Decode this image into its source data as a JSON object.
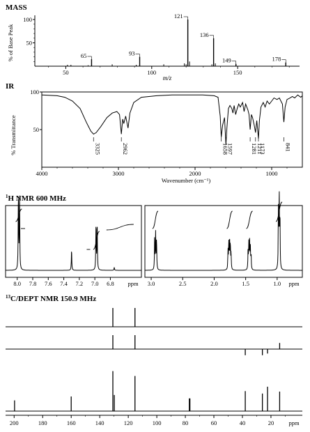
{
  "sections": {
    "mass": "MASS",
    "ir": "IR",
    "hnmr": "H NMR 600 MHz",
    "hnmr_sup": "1",
    "cnmr": "C/DEPT NMR 150.9 MHz",
    "cnmr_sup": "13"
  },
  "chart_data": [
    {
      "id": "mass",
      "type": "bar",
      "title": "MASS",
      "xlabel": "m/z",
      "ylabel": "% of Base Peak",
      "xlim": [
        32,
        186
      ],
      "ylim": [
        0,
        100
      ],
      "x_ticks": [
        "50",
        "100",
        "150"
      ],
      "x_tick_values": [
        50,
        100,
        150
      ],
      "y_ticks": [
        "100",
        "50"
      ],
      "y_tick_values": [
        100,
        50
      ],
      "peaks": [
        {
          "mz": 65,
          "rel": 15,
          "label": "65"
        },
        {
          "mz": 93,
          "rel": 20,
          "label": "93"
        },
        {
          "mz": 121,
          "rel": 100,
          "label": "121"
        },
        {
          "mz": 136,
          "rel": 60,
          "label": "136"
        },
        {
          "mz": 149,
          "rel": 5,
          "label": "149"
        },
        {
          "mz": 178,
          "rel": 8,
          "label": "178"
        }
      ],
      "minor_peaks": [
        [
          51,
          3
        ],
        [
          53,
          3
        ],
        [
          63,
          2
        ],
        [
          77,
          4
        ],
        [
          91,
          3
        ],
        [
          107,
          4
        ],
        [
          119,
          6
        ],
        [
          122,
          10
        ],
        [
          135,
          4
        ],
        [
          137,
          6
        ],
        [
          120,
          4
        ]
      ]
    },
    {
      "id": "ir",
      "type": "line",
      "title": "IR",
      "xlabel": "Wavenumber (cm⁻¹)",
      "ylabel": "% Transmittance",
      "xlim": [
        4000,
        600
      ],
      "ylim": [
        0,
        100
      ],
      "x_ticks": [
        "4000",
        "3000",
        "2000",
        "1000"
      ],
      "x_tick_values": [
        4000,
        3000,
        2000,
        1000
      ],
      "y_ticks": [
        "100",
        "50"
      ],
      "y_tick_values": [
        100,
        50
      ],
      "annotations": [
        {
          "wn": 3325,
          "label": "3325"
        },
        {
          "wn": 2962,
          "label": "2962"
        },
        {
          "wn": 1658,
          "label": "1658"
        },
        {
          "wn": 1597,
          "label": "1597"
        },
        {
          "wn": 1281,
          "label": "1281"
        },
        {
          "wn": 1211,
          "label": "1211"
        },
        {
          "wn": 1173,
          "label": "1173"
        },
        {
          "wn": 841,
          "label": "841"
        }
      ],
      "spectrum": [
        [
          4000,
          96
        ],
        [
          3800,
          95
        ],
        [
          3700,
          93
        ],
        [
          3600,
          88
        ],
        [
          3500,
          78
        ],
        [
          3420,
          60
        ],
        [
          3360,
          48
        ],
        [
          3325,
          44
        ],
        [
          3290,
          46
        ],
        [
          3230,
          54
        ],
        [
          3150,
          66
        ],
        [
          3080,
          72
        ],
        [
          3020,
          74
        ],
        [
          2985,
          70
        ],
        [
          2962,
          44
        ],
        [
          2945,
          64
        ],
        [
          2930,
          58
        ],
        [
          2905,
          68
        ],
        [
          2875,
          52
        ],
        [
          2850,
          72
        ],
        [
          2800,
          86
        ],
        [
          2700,
          93
        ],
        [
          2500,
          95
        ],
        [
          2300,
          96
        ],
        [
          2100,
          96
        ],
        [
          1900,
          96
        ],
        [
          1750,
          95
        ],
        [
          1700,
          93
        ],
        [
          1672,
          68
        ],
        [
          1658,
          40
        ],
        [
          1640,
          56
        ],
        [
          1615,
          66
        ],
        [
          1597,
          30
        ],
        [
          1585,
          52
        ],
        [
          1565,
          78
        ],
        [
          1545,
          82
        ],
        [
          1520,
          78
        ],
        [
          1505,
          72
        ],
        [
          1490,
          82
        ],
        [
          1470,
          70
        ],
        [
          1450,
          78
        ],
        [
          1430,
          84
        ],
        [
          1410,
          80
        ],
        [
          1380,
          86
        ],
        [
          1360,
          74
        ],
        [
          1340,
          84
        ],
        [
          1310,
          76
        ],
        [
          1295,
          70
        ],
        [
          1281,
          50
        ],
        [
          1265,
          70
        ],
        [
          1250,
          66
        ],
        [
          1228,
          56
        ],
        [
          1211,
          46
        ],
        [
          1195,
          62
        ],
        [
          1173,
          38
        ],
        [
          1160,
          62
        ],
        [
          1140,
          80
        ],
        [
          1110,
          86
        ],
        [
          1085,
          80
        ],
        [
          1060,
          88
        ],
        [
          1030,
          84
        ],
        [
          1000,
          88
        ],
        [
          970,
          92
        ],
        [
          930,
          90
        ],
        [
          900,
          92
        ],
        [
          860,
          84
        ],
        [
          841,
          60
        ],
        [
          825,
          80
        ],
        [
          800,
          90
        ],
        [
          760,
          92
        ],
        [
          730,
          94
        ],
        [
          700,
          92
        ],
        [
          660,
          96
        ],
        [
          620,
          93
        ],
        [
          600,
          95
        ]
      ]
    },
    {
      "id": "hnmr_left",
      "type": "line",
      "title": "H NMR 600 MHz",
      "xlabel": "ppm",
      "xlim": [
        8.15,
        6.4
      ],
      "x_ticks": [
        "8.0",
        "7.8",
        "7.6",
        "7.4",
        "7.2",
        "7.0",
        "6.8"
      ],
      "x_tick_values": [
        8.0,
        7.8,
        7.6,
        7.4,
        7.2,
        7.0,
        6.8
      ],
      "peaks": [
        {
          "ppm": 7.985,
          "h": 1.0
        },
        {
          "ppm": 7.97,
          "h": 1.0
        },
        {
          "ppm": 7.3,
          "h": 0.28
        },
        {
          "ppm": 6.985,
          "h": 0.62
        },
        {
          "ppm": 6.97,
          "h": 0.62
        },
        {
          "ppm": 6.75,
          "h": 0.04
        }
      ]
    },
    {
      "id": "hnmr_right",
      "type": "line",
      "xlabel": "ppm",
      "xlim": [
        3.1,
        0.6
      ],
      "x_ticks": [
        "3.0",
        "2.5",
        "2.0",
        "1.5",
        "1.0"
      ],
      "x_tick_values": [
        3.0,
        2.5,
        2.0,
        1.5,
        1.0
      ],
      "peaks": [
        {
          "ppm": 2.945,
          "h": 0.42
        },
        {
          "ppm": 2.93,
          "h": 0.5
        },
        {
          "ppm": 2.915,
          "h": 0.42
        },
        {
          "ppm": 1.78,
          "h": 0.25
        },
        {
          "ppm": 1.768,
          "h": 0.36
        },
        {
          "ppm": 1.756,
          "h": 0.4
        },
        {
          "ppm": 1.744,
          "h": 0.34
        },
        {
          "ppm": 1.732,
          "h": 0.22
        },
        {
          "ppm": 1.462,
          "h": 0.24
        },
        {
          "ppm": 1.45,
          "h": 0.34
        },
        {
          "ppm": 1.438,
          "h": 0.36
        },
        {
          "ppm": 1.426,
          "h": 0.3
        },
        {
          "ppm": 1.414,
          "h": 0.2
        },
        {
          "ppm": 0.98,
          "h": 0.78
        },
        {
          "ppm": 0.968,
          "h": 1.0
        },
        {
          "ppm": 0.956,
          "h": 0.72
        }
      ]
    },
    {
      "id": "cnmr",
      "type": "bar",
      "title": "C/DEPT NMR 150.9 MHz",
      "xlabel": "ppm",
      "xlim": [
        206,
        -2
      ],
      "x_ticks": [
        "200",
        "180",
        "160",
        "140",
        "120",
        "100",
        "80",
        "60",
        "40",
        "20"
      ],
      "x_tick_values": [
        200,
        180,
        160,
        140,
        120,
        100,
        80,
        60,
        40,
        20
      ],
      "dept90": [
        {
          "ppm": 130.8,
          "h": 0.6
        },
        {
          "ppm": 115.3,
          "h": 0.6
        }
      ],
      "dept135": [
        {
          "ppm": 130.8,
          "h": 0.5
        },
        {
          "ppm": 115.3,
          "h": 0.5
        },
        {
          "ppm": 38.0,
          "h": -0.22
        },
        {
          "ppm": 26.0,
          "h": -0.22
        },
        {
          "ppm": 22.4,
          "h": -0.16
        },
        {
          "ppm": 13.9,
          "h": 0.22
        }
      ],
      "broadband": [
        {
          "ppm": 199.7,
          "h": 0.22
        },
        {
          "ppm": 160.0,
          "h": 0.3
        },
        {
          "ppm": 130.8,
          "h": 0.82
        },
        {
          "ppm": 129.8,
          "h": 0.33
        },
        {
          "ppm": 115.3,
          "h": 0.72
        },
        {
          "ppm": 77.2,
          "h": 0.26
        },
        {
          "ppm": 76.8,
          "h": 0.26
        },
        {
          "ppm": 38.0,
          "h": 0.41
        },
        {
          "ppm": 26.0,
          "h": 0.36
        },
        {
          "ppm": 22.4,
          "h": 0.5
        },
        {
          "ppm": 13.9,
          "h": 0.4
        }
      ]
    }
  ]
}
